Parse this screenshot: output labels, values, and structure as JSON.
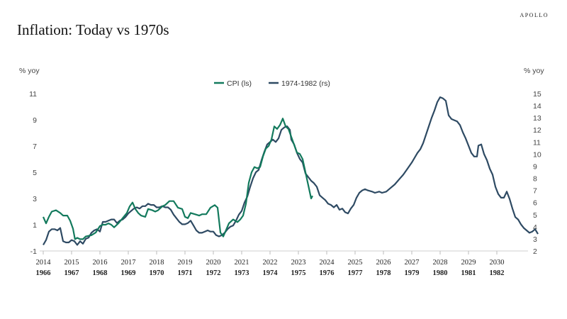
{
  "header": {
    "brand": "APOLLO",
    "title": "Inflation: Today vs 1970s"
  },
  "chart_data": {
    "type": "line",
    "left_unit": "% yoy",
    "right_unit": "% yoy",
    "y_left": {
      "min": -1,
      "max": 11,
      "ticks": [
        -1,
        1,
        3,
        5,
        7,
        9,
        11
      ]
    },
    "y_right": {
      "min": 2,
      "max": 15,
      "ticks": [
        2,
        3,
        4,
        5,
        6,
        7,
        8,
        9,
        10,
        11,
        12,
        13,
        14,
        15
      ]
    },
    "x_top": {
      "min": 2014,
      "max": 2031,
      "ticks": [
        "2014",
        "2015",
        "2016",
        "2017",
        "2018",
        "2019",
        "2020",
        "2021",
        "2022",
        "2023",
        "2024",
        "2025",
        "2026",
        "2027",
        "2028",
        "2029",
        "2030"
      ]
    },
    "x_bottom_ticks": [
      "1966",
      "1967",
      "1968",
      "1969",
      "1970",
      "1971",
      "1972",
      "1973",
      "1974",
      "1975",
      "1976",
      "1977",
      "1978",
      "1979",
      "1980",
      "1981",
      "1982"
    ],
    "colors": {
      "cpi": "#137a5d",
      "seventies": "#2e4a63"
    },
    "series": [
      {
        "name": "CPI (ls)",
        "axis": "left",
        "points": [
          [
            2014.0,
            1.6
          ],
          [
            2014.1,
            1.1
          ],
          [
            2014.2,
            1.6
          ],
          [
            2014.3,
            2.0
          ],
          [
            2014.45,
            2.1
          ],
          [
            2014.6,
            1.9
          ],
          [
            2014.7,
            1.7
          ],
          [
            2014.85,
            1.7
          ],
          [
            2014.95,
            1.3
          ],
          [
            2015.05,
            0.7
          ],
          [
            2015.12,
            -0.1
          ],
          [
            2015.2,
            0.0
          ],
          [
            2015.3,
            -0.1
          ],
          [
            2015.4,
            -0.1
          ],
          [
            2015.5,
            0.1
          ],
          [
            2015.7,
            0.2
          ],
          [
            2015.85,
            0.4
          ],
          [
            2016.0,
            0.9
          ],
          [
            2016.1,
            1.0
          ],
          [
            2016.2,
            1.0
          ],
          [
            2016.3,
            1.1
          ],
          [
            2016.4,
            1.0
          ],
          [
            2016.5,
            0.8
          ],
          [
            2016.65,
            1.1
          ],
          [
            2016.8,
            1.5
          ],
          [
            2016.95,
            1.9
          ],
          [
            2017.05,
            2.4
          ],
          [
            2017.15,
            2.7
          ],
          [
            2017.25,
            2.2
          ],
          [
            2017.35,
            1.9
          ],
          [
            2017.45,
            1.7
          ],
          [
            2017.6,
            1.6
          ],
          [
            2017.7,
            2.2
          ],
          [
            2017.85,
            2.1
          ],
          [
            2017.95,
            2.0
          ],
          [
            2018.05,
            2.1
          ],
          [
            2018.2,
            2.4
          ],
          [
            2018.3,
            2.5
          ],
          [
            2018.45,
            2.8
          ],
          [
            2018.6,
            2.8
          ],
          [
            2018.75,
            2.3
          ],
          [
            2018.9,
            2.2
          ],
          [
            2019.0,
            1.6
          ],
          [
            2019.1,
            1.5
          ],
          [
            2019.2,
            1.9
          ],
          [
            2019.35,
            1.8
          ],
          [
            2019.5,
            1.7
          ],
          [
            2019.6,
            1.8
          ],
          [
            2019.75,
            1.8
          ],
          [
            2019.9,
            2.3
          ],
          [
            2020.05,
            2.5
          ],
          [
            2020.15,
            2.3
          ],
          [
            2020.25,
            0.4
          ],
          [
            2020.35,
            0.1
          ],
          [
            2020.45,
            0.6
          ],
          [
            2020.55,
            1.1
          ],
          [
            2020.7,
            1.4
          ],
          [
            2020.85,
            1.2
          ],
          [
            2020.95,
            1.4
          ],
          [
            2021.05,
            1.7
          ],
          [
            2021.15,
            2.6
          ],
          [
            2021.25,
            4.2
          ],
          [
            2021.35,
            5.0
          ],
          [
            2021.45,
            5.4
          ],
          [
            2021.55,
            5.3
          ],
          [
            2021.65,
            5.4
          ],
          [
            2021.75,
            6.2
          ],
          [
            2021.85,
            6.8
          ],
          [
            2021.95,
            7.0
          ],
          [
            2022.05,
            7.5
          ],
          [
            2022.15,
            8.5
          ],
          [
            2022.25,
            8.3
          ],
          [
            2022.35,
            8.6
          ],
          [
            2022.45,
            9.1
          ],
          [
            2022.55,
            8.5
          ],
          [
            2022.65,
            8.3
          ],
          [
            2022.75,
            7.7
          ],
          [
            2022.85,
            7.1
          ],
          [
            2022.95,
            6.5
          ],
          [
            2023.05,
            6.4
          ],
          [
            2023.15,
            6.0
          ],
          [
            2023.25,
            5.0
          ],
          [
            2023.35,
            4.0
          ],
          [
            2023.45,
            3.0
          ],
          [
            2023.5,
            3.2
          ]
        ]
      },
      {
        "name": "1974-1982 (rs)",
        "axis": "right",
        "points": [
          [
            2014.0,
            2.5
          ],
          [
            2014.1,
            2.9
          ],
          [
            2014.2,
            3.6
          ],
          [
            2014.3,
            3.8
          ],
          [
            2014.4,
            3.8
          ],
          [
            2014.5,
            3.7
          ],
          [
            2014.6,
            3.9
          ],
          [
            2014.7,
            2.8
          ],
          [
            2014.8,
            2.7
          ],
          [
            2014.9,
            2.7
          ],
          [
            2015.0,
            2.9
          ],
          [
            2015.1,
            2.8
          ],
          [
            2015.2,
            2.5
          ],
          [
            2015.3,
            2.8
          ],
          [
            2015.4,
            2.6
          ],
          [
            2015.5,
            3.0
          ],
          [
            2015.6,
            3.1
          ],
          [
            2015.7,
            3.5
          ],
          [
            2015.8,
            3.7
          ],
          [
            2015.9,
            3.8
          ],
          [
            2016.0,
            3.6
          ],
          [
            2016.1,
            4.4
          ],
          [
            2016.2,
            4.4
          ],
          [
            2016.3,
            4.5
          ],
          [
            2016.4,
            4.6
          ],
          [
            2016.5,
            4.6
          ],
          [
            2016.6,
            4.3
          ],
          [
            2016.7,
            4.5
          ],
          [
            2016.8,
            4.6
          ],
          [
            2016.9,
            4.8
          ],
          [
            2017.0,
            5.1
          ],
          [
            2017.1,
            5.3
          ],
          [
            2017.2,
            5.5
          ],
          [
            2017.3,
            5.6
          ],
          [
            2017.4,
            5.5
          ],
          [
            2017.5,
            5.7
          ],
          [
            2017.6,
            5.7
          ],
          [
            2017.7,
            5.9
          ],
          [
            2017.8,
            5.8
          ],
          [
            2017.9,
            5.8
          ],
          [
            2018.0,
            5.6
          ],
          [
            2018.1,
            5.6
          ],
          [
            2018.2,
            5.7
          ],
          [
            2018.3,
            5.6
          ],
          [
            2018.4,
            5.6
          ],
          [
            2018.5,
            5.4
          ],
          [
            2018.6,
            5.0
          ],
          [
            2018.7,
            4.7
          ],
          [
            2018.8,
            4.4
          ],
          [
            2018.9,
            4.2
          ],
          [
            2019.0,
            4.2
          ],
          [
            2019.1,
            4.3
          ],
          [
            2019.2,
            4.5
          ],
          [
            2019.3,
            4.1
          ],
          [
            2019.4,
            3.7
          ],
          [
            2019.5,
            3.5
          ],
          [
            2019.6,
            3.5
          ],
          [
            2019.7,
            3.6
          ],
          [
            2019.8,
            3.7
          ],
          [
            2019.9,
            3.6
          ],
          [
            2020.0,
            3.6
          ],
          [
            2020.1,
            3.3
          ],
          [
            2020.2,
            3.2
          ],
          [
            2020.3,
            3.3
          ],
          [
            2020.4,
            3.5
          ],
          [
            2020.5,
            3.8
          ],
          [
            2020.6,
            4.0
          ],
          [
            2020.7,
            4.1
          ],
          [
            2020.8,
            4.5
          ],
          [
            2020.9,
            5.0
          ],
          [
            2021.0,
            5.3
          ],
          [
            2021.1,
            6.0
          ],
          [
            2021.2,
            6.5
          ],
          [
            2021.3,
            7.3
          ],
          [
            2021.4,
            8.0
          ],
          [
            2021.5,
            8.5
          ],
          [
            2021.6,
            8.7
          ],
          [
            2021.7,
            9.5
          ],
          [
            2021.8,
            10.2
          ],
          [
            2021.9,
            10.8
          ],
          [
            2022.0,
            11.0
          ],
          [
            2022.1,
            11.2
          ],
          [
            2022.2,
            11.0
          ],
          [
            2022.3,
            11.3
          ],
          [
            2022.4,
            12.0
          ],
          [
            2022.5,
            12.2
          ],
          [
            2022.6,
            12.3
          ],
          [
            2022.7,
            12.0
          ],
          [
            2022.75,
            11.2
          ],
          [
            2022.85,
            10.8
          ],
          [
            2022.95,
            10.1
          ],
          [
            2023.05,
            9.6
          ],
          [
            2023.15,
            9.3
          ],
          [
            2023.25,
            8.4
          ],
          [
            2023.35,
            8.1
          ],
          [
            2023.45,
            7.8
          ],
          [
            2023.55,
            7.6
          ],
          [
            2023.65,
            7.3
          ],
          [
            2023.75,
            6.6
          ],
          [
            2023.85,
            6.4
          ],
          [
            2023.95,
            6.2
          ],
          [
            2024.05,
            5.9
          ],
          [
            2024.15,
            5.8
          ],
          [
            2024.25,
            5.6
          ],
          [
            2024.35,
            5.8
          ],
          [
            2024.45,
            5.4
          ],
          [
            2024.55,
            5.5
          ],
          [
            2024.65,
            5.2
          ],
          [
            2024.75,
            5.1
          ],
          [
            2024.85,
            5.5
          ],
          [
            2024.95,
            5.8
          ],
          [
            2025.05,
            6.4
          ],
          [
            2025.15,
            6.8
          ],
          [
            2025.25,
            7.0
          ],
          [
            2025.35,
            7.1
          ],
          [
            2025.45,
            7.0
          ],
          [
            2025.6,
            6.9
          ],
          [
            2025.7,
            6.8
          ],
          [
            2025.85,
            6.9
          ],
          [
            2025.95,
            6.8
          ],
          [
            2026.1,
            6.9
          ],
          [
            2026.25,
            7.2
          ],
          [
            2026.4,
            7.5
          ],
          [
            2026.55,
            7.9
          ],
          [
            2026.7,
            8.3
          ],
          [
            2026.85,
            8.8
          ],
          [
            2027.0,
            9.3
          ],
          [
            2027.1,
            9.7
          ],
          [
            2027.2,
            10.1
          ],
          [
            2027.3,
            10.4
          ],
          [
            2027.4,
            10.9
          ],
          [
            2027.5,
            11.6
          ],
          [
            2027.6,
            12.3
          ],
          [
            2027.7,
            13.0
          ],
          [
            2027.8,
            13.6
          ],
          [
            2027.9,
            14.3
          ],
          [
            2028.0,
            14.7
          ],
          [
            2028.1,
            14.6
          ],
          [
            2028.2,
            14.4
          ],
          [
            2028.3,
            13.2
          ],
          [
            2028.4,
            12.9
          ],
          [
            2028.5,
            12.8
          ],
          [
            2028.6,
            12.7
          ],
          [
            2028.7,
            12.4
          ],
          [
            2028.8,
            11.8
          ],
          [
            2028.9,
            11.3
          ],
          [
            2029.0,
            10.7
          ],
          [
            2029.1,
            10.1
          ],
          [
            2029.2,
            9.8
          ],
          [
            2029.3,
            9.8
          ],
          [
            2029.35,
            10.7
          ],
          [
            2029.45,
            10.8
          ],
          [
            2029.55,
            10.0
          ],
          [
            2029.65,
            9.5
          ],
          [
            2029.75,
            8.8
          ],
          [
            2029.85,
            8.3
          ],
          [
            2029.95,
            7.3
          ],
          [
            2030.05,
            6.7
          ],
          [
            2030.15,
            6.4
          ],
          [
            2030.25,
            6.4
          ],
          [
            2030.35,
            6.9
          ],
          [
            2030.45,
            6.3
          ],
          [
            2030.55,
            5.5
          ],
          [
            2030.65,
            4.8
          ],
          [
            2030.75,
            4.6
          ],
          [
            2030.85,
            4.2
          ],
          [
            2030.95,
            3.9
          ],
          [
            2031.05,
            3.7
          ],
          [
            2031.15,
            3.5
          ],
          [
            2031.25,
            3.6
          ],
          [
            2031.35,
            3.8
          ],
          [
            2031.45,
            3.4
          ]
        ]
      }
    ]
  }
}
